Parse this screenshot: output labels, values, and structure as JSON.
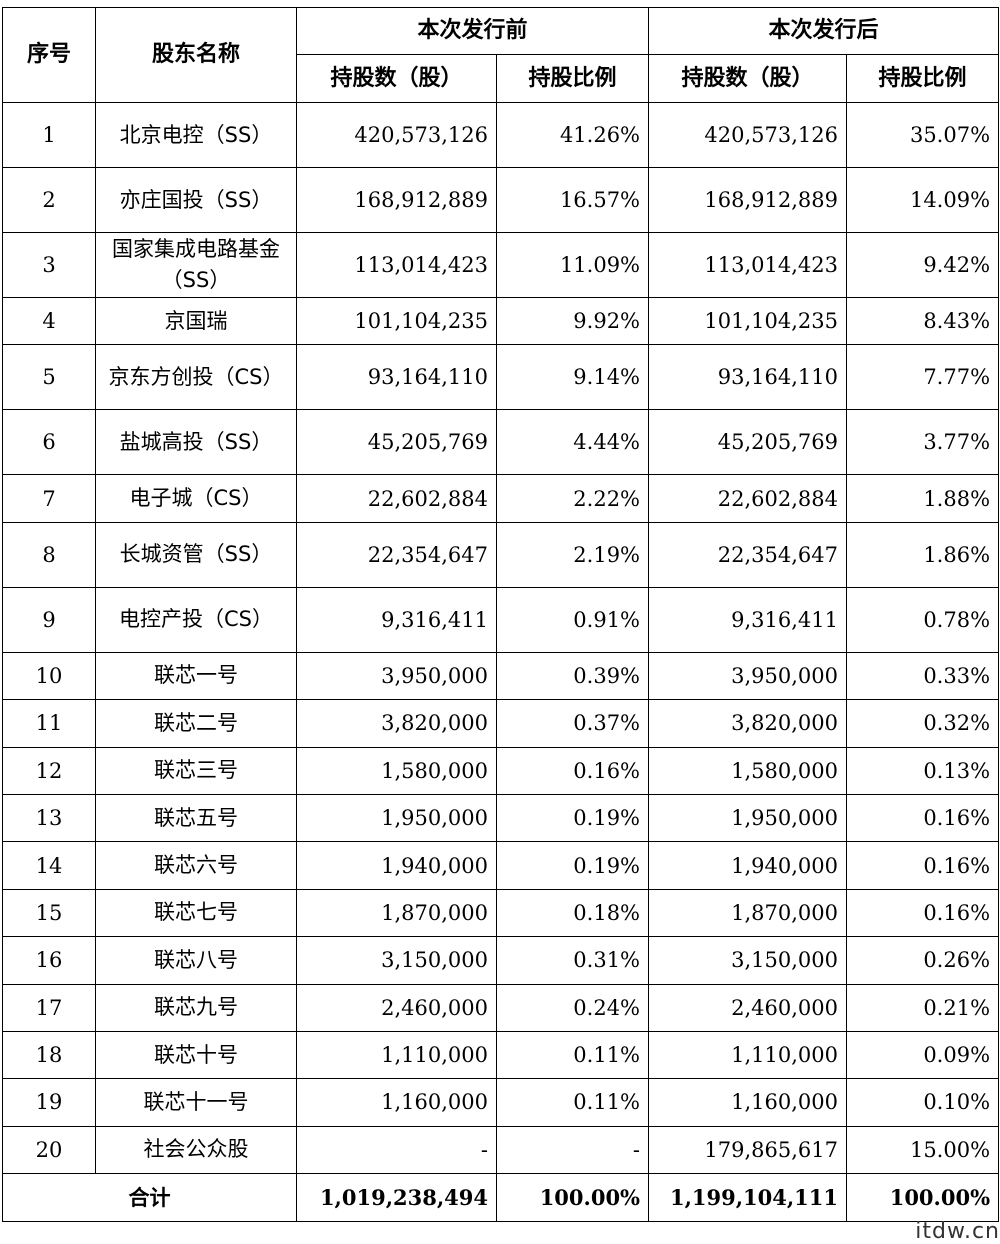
{
  "header": {
    "seq": "序号",
    "name": "股东名称",
    "before": "本次发行前",
    "after": "本次发行后",
    "shares": "持股数（股）",
    "ratio": "持股比例"
  },
  "rows": [
    {
      "seq": "1",
      "name": "北京电控（SS）",
      "shares_before": "420,573,126",
      "ratio_before": "41.26%",
      "shares_after": "420,573,126",
      "ratio_after": "35.07%"
    },
    {
      "seq": "2",
      "name": "亦庄国投（SS）",
      "shares_before": "168,912,889",
      "ratio_before": "16.57%",
      "shares_after": "168,912,889",
      "ratio_after": "14.09%"
    },
    {
      "seq": "3",
      "name": "国家集成电路基金（SS）",
      "shares_before": "113,014,423",
      "ratio_before": "11.09%",
      "shares_after": "113,014,423",
      "ratio_after": "9.42%"
    },
    {
      "seq": "4",
      "name": "京国瑞",
      "shares_before": "101,104,235",
      "ratio_before": "9.92%",
      "shares_after": "101,104,235",
      "ratio_after": "8.43%"
    },
    {
      "seq": "5",
      "name": "京东方创投（CS）",
      "shares_before": "93,164,110",
      "ratio_before": "9.14%",
      "shares_after": "93,164,110",
      "ratio_after": "7.77%"
    },
    {
      "seq": "6",
      "name": "盐城高投（SS）",
      "shares_before": "45,205,769",
      "ratio_before": "4.44%",
      "shares_after": "45,205,769",
      "ratio_after": "3.77%"
    },
    {
      "seq": "7",
      "name": "电子城（CS）",
      "shares_before": "22,602,884",
      "ratio_before": "2.22%",
      "shares_after": "22,602,884",
      "ratio_after": "1.88%"
    },
    {
      "seq": "8",
      "name": "长城资管（SS）",
      "shares_before": "22,354,647",
      "ratio_before": "2.19%",
      "shares_after": "22,354,647",
      "ratio_after": "1.86%"
    },
    {
      "seq": "9",
      "name": "电控产投（CS）",
      "shares_before": "9,316,411",
      "ratio_before": "0.91%",
      "shares_after": "9,316,411",
      "ratio_after": "0.78%"
    },
    {
      "seq": "10",
      "name": "联芯一号",
      "shares_before": "3,950,000",
      "ratio_before": "0.39%",
      "shares_after": "3,950,000",
      "ratio_after": "0.33%"
    },
    {
      "seq": "11",
      "name": "联芯二号",
      "shares_before": "3,820,000",
      "ratio_before": "0.37%",
      "shares_after": "3,820,000",
      "ratio_after": "0.32%"
    },
    {
      "seq": "12",
      "name": "联芯三号",
      "shares_before": "1,580,000",
      "ratio_before": "0.16%",
      "shares_after": "1,580,000",
      "ratio_after": "0.13%"
    },
    {
      "seq": "13",
      "name": "联芯五号",
      "shares_before": "1,950,000",
      "ratio_before": "0.19%",
      "shares_after": "1,950,000",
      "ratio_after": "0.16%"
    },
    {
      "seq": "14",
      "name": "联芯六号",
      "shares_before": "1,940,000",
      "ratio_before": "0.19%",
      "shares_after": "1,940,000",
      "ratio_after": "0.16%"
    },
    {
      "seq": "15",
      "name": "联芯七号",
      "shares_before": "1,870,000",
      "ratio_before": "0.18%",
      "shares_after": "1,870,000",
      "ratio_after": "0.16%"
    },
    {
      "seq": "16",
      "name": "联芯八号",
      "shares_before": "3,150,000",
      "ratio_before": "0.31%",
      "shares_after": "3,150,000",
      "ratio_after": "0.26%"
    },
    {
      "seq": "17",
      "name": "联芯九号",
      "shares_before": "2,460,000",
      "ratio_before": "0.24%",
      "shares_after": "2,460,000",
      "ratio_after": "0.21%"
    },
    {
      "seq": "18",
      "name": "联芯十号",
      "shares_before": "1,110,000",
      "ratio_before": "0.11%",
      "shares_after": "1,110,000",
      "ratio_after": "0.09%"
    },
    {
      "seq": "19",
      "name": "联芯十一号",
      "shares_before": "1,160,000",
      "ratio_before": "0.11%",
      "shares_after": "1,160,000",
      "ratio_after": "0.10%"
    },
    {
      "seq": "20",
      "name": "社会公众股",
      "shares_before": "-",
      "ratio_before": "-",
      "shares_after": "179,865,617",
      "ratio_after": "15.00%"
    }
  ],
  "total": {
    "label": "合计",
    "shares_before": "1,019,238,494",
    "ratio_before": "100.00%",
    "shares_after": "1,199,104,111",
    "ratio_after": "100.00%"
  },
  "watermark": "itdw.cn"
}
